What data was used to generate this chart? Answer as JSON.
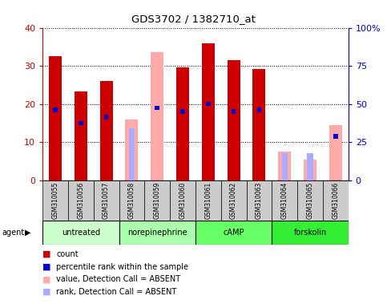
{
  "title": "GDS3702 / 1382710_at",
  "samples": [
    "GSM310055",
    "GSM310056",
    "GSM310057",
    "GSM310058",
    "GSM310059",
    "GSM310060",
    "GSM310061",
    "GSM310062",
    "GSM310063",
    "GSM310064",
    "GSM310065",
    "GSM310066"
  ],
  "count_values": [
    32.5,
    23.2,
    26.0,
    null,
    null,
    29.5,
    36.0,
    31.5,
    29.2,
    null,
    null,
    null
  ],
  "absent_value_values": [
    null,
    null,
    null,
    16.0,
    33.5,
    null,
    null,
    null,
    null,
    7.5,
    5.5,
    14.5
  ],
  "percentile_rank": [
    18.5,
    15.0,
    16.5,
    null,
    19.0,
    18.0,
    20.0,
    18.0,
    18.5,
    null,
    null,
    11.5
  ],
  "absent_rank_values": [
    null,
    null,
    null,
    13.5,
    null,
    null,
    null,
    null,
    null,
    7.0,
    7.0,
    null
  ],
  "agent_groups": [
    {
      "label": "untreated",
      "start": 0,
      "end": 3,
      "color": "#ccffcc"
    },
    {
      "label": "norepinephrine",
      "start": 3,
      "end": 6,
      "color": "#aaffaa"
    },
    {
      "label": "cAMP",
      "start": 6,
      "end": 9,
      "color": "#66ff66"
    },
    {
      "label": "forskolin",
      "start": 9,
      "end": 12,
      "color": "#33ee33"
    }
  ],
  "ylim": [
    0,
    40
  ],
  "y2lim": [
    0,
    100
  ],
  "yticks": [
    0,
    10,
    20,
    30,
    40
  ],
  "y2ticks": [
    0,
    25,
    50,
    75,
    100
  ],
  "y2ticklabels": [
    "0",
    "25",
    "50",
    "75",
    "100%"
  ],
  "bar_width": 0.5,
  "count_color": "#cc0000",
  "absent_value_color": "#ffaaaa",
  "percentile_color": "#0000cc",
  "absent_rank_color": "#aaaaff",
  "axis_color_left": "#cc0000",
  "axis_color_right": "#0000cc",
  "bg_color": "#ffffff",
  "plot_bg": "#ffffff",
  "grid_color": "#000000"
}
